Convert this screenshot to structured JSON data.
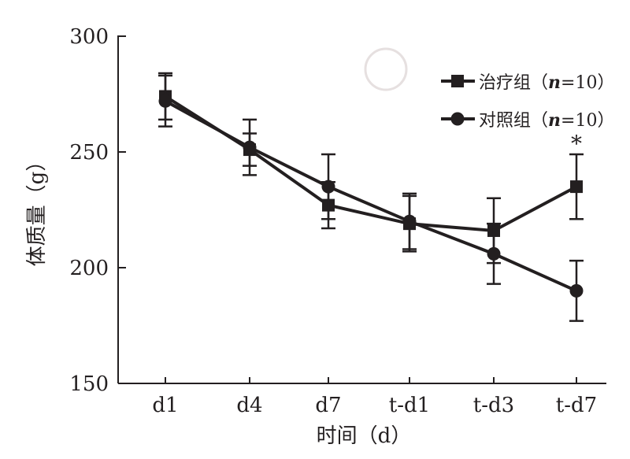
{
  "chart_data": {
    "type": "line",
    "title": "",
    "xlabel": "时间（d）",
    "ylabel": "体质量（g）",
    "categories": [
      "d1",
      "d4",
      "d7",
      "t-d1",
      "t-d3",
      "t-d7"
    ],
    "ylim": [
      150,
      300
    ],
    "yticks": [
      150,
      200,
      250,
      300
    ],
    "grid": false,
    "legend_position": "top-right",
    "series": [
      {
        "name": "治疗组",
        "n_label": "n",
        "n_value": "=10",
        "marker": "square",
        "values": [
          274,
          251,
          227,
          219,
          216,
          235
        ],
        "errors": [
          10,
          7,
          10,
          12,
          14,
          14
        ]
      },
      {
        "name": "对照组",
        "n_label": "n",
        "n_value": "=10",
        "marker": "circle",
        "values": [
          272,
          252,
          235,
          220,
          206,
          190
        ],
        "errors": [
          11,
          12,
          14,
          12,
          13,
          13
        ]
      }
    ],
    "annotations": [
      {
        "category": "t-d7",
        "text": "*"
      }
    ],
    "color": "#231f20"
  }
}
